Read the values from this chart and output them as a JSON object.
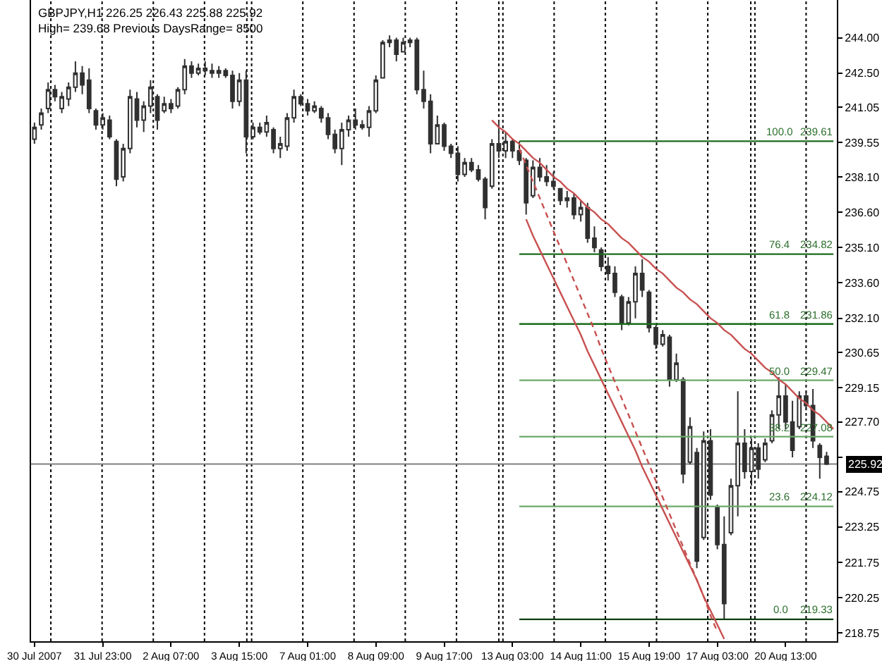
{
  "chart_data": {
    "type": "candlestick",
    "title": "GBPJPY,H1 226.25 226.43 225.88 225.92",
    "subtitle": "High= 239.68 Previous DaysRange= 8500",
    "color": "#303030",
    "categories": [
      "30 Jul 2007",
      null,
      null,
      null,
      null,
      null,
      null,
      null,
      null,
      null,
      "31 Jul 23:00",
      null,
      null,
      null,
      null,
      null,
      null,
      null,
      null,
      null,
      "2 Aug 07:00",
      null,
      null,
      null,
      null,
      null,
      null,
      null,
      null,
      null,
      "3 Aug 15:00",
      null,
      null,
      null,
      null,
      null,
      null,
      null,
      null,
      null,
      "7 Aug 01:00",
      null,
      null,
      null,
      null,
      null,
      null,
      null,
      null,
      null,
      "8 Aug 09:00",
      null,
      null,
      null,
      null,
      null,
      null,
      null,
      null,
      null,
      "9 Aug 17:00",
      null,
      null,
      null,
      null,
      null,
      null,
      null,
      null,
      null,
      "13 Aug 03:00",
      null,
      null,
      null,
      null,
      null,
      null,
      null,
      null,
      null,
      "14 Aug 11:00",
      null,
      null,
      null,
      null,
      null,
      null,
      null,
      null,
      null,
      "15 Aug 19:00",
      null,
      null,
      null,
      null,
      null,
      null,
      null,
      null,
      null,
      "17 Aug 03:00",
      null,
      null,
      null,
      null,
      null,
      null,
      null,
      null,
      null,
      "20 Aug 13:00",
      null,
      null,
      null,
      null,
      null,
      null,
      null
    ],
    "ohlc": [
      [
        239.7,
        240.4,
        239.5,
        240.2
      ],
      [
        240.3,
        241.0,
        240.1,
        240.8
      ],
      [
        241.0,
        242.1,
        240.8,
        241.8
      ],
      [
        241.8,
        242.0,
        241.3,
        241.5
      ],
      [
        241.0,
        241.7,
        240.8,
        241.5
      ],
      [
        241.4,
        242.1,
        241.1,
        241.9
      ],
      [
        241.9,
        243.0,
        241.7,
        242.5
      ],
      [
        242.5,
        242.8,
        241.6,
        242.0
      ],
      [
        242.2,
        242.7,
        240.8,
        241.0
      ],
      [
        240.9,
        241.0,
        240.1,
        240.3
      ],
      [
        240.3,
        240.8,
        240.1,
        240.6
      ],
      [
        240.5,
        240.7,
        239.7,
        239.8
      ],
      [
        239.6,
        239.7,
        237.7,
        238.0
      ],
      [
        238.1,
        239.5,
        237.9,
        239.3
      ],
      [
        239.3,
        241.8,
        239.1,
        241.5
      ],
      [
        241.4,
        241.7,
        240.2,
        240.5
      ],
      [
        240.5,
        241.3,
        240.0,
        241.1
      ],
      [
        241.1,
        242.2,
        240.8,
        241.9
      ],
      [
        241.5,
        241.6,
        240.1,
        240.5
      ],
      [
        240.9,
        241.5,
        240.8,
        241.2
      ],
      [
        241.2,
        241.4,
        240.8,
        241.0
      ],
      [
        241.1,
        241.9,
        241.0,
        241.8
      ],
      [
        241.8,
        243.1,
        241.6,
        242.8
      ],
      [
        242.8,
        243.0,
        242.3,
        242.5
      ],
      [
        242.5,
        242.9,
        242.4,
        242.7
      ],
      [
        242.7,
        243.0,
        242.4,
        242.6
      ],
      [
        242.6,
        242.9,
        242.3,
        242.5
      ],
      [
        242.5,
        242.8,
        242.3,
        242.6
      ],
      [
        242.6,
        242.7,
        242.3,
        242.4
      ],
      [
        242.4,
        242.6,
        241.0,
        241.3
      ],
      [
        241.3,
        242.5,
        241.1,
        242.2
      ],
      [
        242.2,
        242.6,
        239.1,
        239.8
      ],
      [
        239.8,
        240.4,
        239.7,
        240.2
      ],
      [
        240.2,
        240.4,
        239.9,
        240.0
      ],
      [
        240.0,
        240.7,
        239.8,
        240.4
      ],
      [
        240.1,
        240.2,
        239.1,
        239.3
      ],
      [
        239.3,
        239.8,
        238.9,
        239.5
      ],
      [
        239.4,
        240.8,
        239.2,
        240.6
      ],
      [
        240.6,
        241.8,
        240.4,
        241.5
      ],
      [
        241.5,
        241.6,
        241.1,
        241.2
      ],
      [
        241.2,
        241.4,
        240.7,
        240.9
      ],
      [
        240.9,
        241.3,
        240.8,
        241.1
      ],
      [
        241.0,
        241.1,
        240.4,
        240.6
      ],
      [
        240.6,
        240.8,
        239.7,
        239.9
      ],
      [
        239.9,
        240.1,
        239.1,
        239.3
      ],
      [
        239.3,
        240.4,
        238.6,
        240.1
      ],
      [
        240.1,
        240.7,
        239.8,
        240.5
      ],
      [
        240.5,
        241.0,
        240.1,
        240.3
      ],
      [
        240.3,
        240.5,
        240.1,
        240.2
      ],
      [
        240.2,
        241.1,
        239.8,
        240.9
      ],
      [
        240.9,
        242.4,
        240.8,
        242.2
      ],
      [
        242.3,
        243.9,
        242.3,
        243.8
      ],
      [
        243.8,
        244.1,
        243.6,
        243.9
      ],
      [
        243.9,
        244.0,
        243.0,
        243.3
      ],
      [
        243.4,
        244.0,
        243.4,
        243.8
      ],
      [
        243.8,
        244.0,
        243.6,
        243.9
      ],
      [
        243.9,
        244.0,
        241.6,
        241.8
      ],
      [
        241.8,
        242.6,
        241.0,
        241.3
      ],
      [
        241.3,
        241.6,
        239.1,
        239.5
      ],
      [
        239.5,
        240.7,
        239.5,
        240.3
      ],
      [
        240.3,
        240.4,
        239.2,
        239.4
      ],
      [
        239.4,
        239.5,
        238.9,
        239.1
      ],
      [
        239.1,
        239.4,
        237.9,
        238.2
      ],
      [
        238.2,
        238.9,
        238.1,
        238.7
      ],
      [
        238.7,
        238.9,
        238.3,
        238.4
      ],
      [
        238.4,
        238.6,
        237.9,
        238.0
      ],
      [
        238.0,
        238.1,
        236.3,
        236.8
      ],
      [
        237.7,
        239.7,
        237.6,
        239.5
      ],
      [
        239.5,
        240.5,
        238.9,
        239.2
      ],
      [
        239.2,
        240.0,
        238.9,
        239.6
      ],
      [
        239.6,
        239.7,
        238.9,
        239.2
      ],
      [
        239.2,
        239.6,
        238.6,
        238.8
      ],
      [
        238.8,
        238.9,
        236.5,
        237.0
      ],
      [
        237.3,
        238.8,
        237.2,
        238.5
      ],
      [
        238.5,
        238.9,
        237.9,
        238.1
      ],
      [
        238.1,
        238.6,
        237.7,
        237.9
      ],
      [
        237.9,
        238.3,
        237.6,
        237.7
      ],
      [
        237.6,
        237.6,
        236.9,
        237.1
      ],
      [
        237.1,
        237.5,
        236.8,
        237.2
      ],
      [
        237.2,
        237.4,
        236.3,
        236.5
      ],
      [
        236.5,
        237.1,
        236.2,
        236.8
      ],
      [
        236.8,
        237.0,
        235.3,
        235.5
      ],
      [
        235.5,
        236.0,
        234.9,
        235.1
      ],
      [
        235.0,
        235.1,
        234.1,
        234.3
      ],
      [
        234.3,
        234.7,
        233.7,
        234.0
      ],
      [
        234.0,
        234.3,
        233.0,
        233.2
      ],
      [
        233.0,
        233.1,
        231.6,
        231.9
      ],
      [
        231.9,
        233.0,
        231.8,
        232.8
      ],
      [
        232.8,
        234.3,
        232.1,
        234.0
      ],
      [
        234.0,
        234.6,
        233.0,
        233.3
      ],
      [
        233.2,
        233.3,
        231.5,
        231.7
      ],
      [
        231.7,
        231.8,
        230.8,
        231.0
      ],
      [
        231.0,
        231.6,
        230.9,
        231.4
      ],
      [
        231.3,
        231.4,
        229.2,
        229.5
      ],
      [
        229.5,
        230.6,
        229.4,
        230.2
      ],
      [
        229.5,
        229.6,
        225.1,
        225.5
      ],
      [
        226.0,
        227.9,
        225.9,
        227.5
      ],
      [
        226.4,
        226.6,
        221.5,
        221.8
      ],
      [
        222.8,
        227.3,
        222.7,
        226.9
      ],
      [
        226.9,
        227.4,
        224.4,
        224.6
      ],
      [
        224.1,
        224.2,
        222.3,
        222.5
      ],
      [
        222.5,
        223.7,
        219.3,
        220.0
      ],
      [
        223.0,
        225.3,
        222.9,
        225.0
      ],
      [
        225.0,
        229.0,
        223.7,
        226.8
      ],
      [
        226.8,
        227.4,
        225.3,
        225.6
      ],
      [
        225.6,
        227.0,
        225.0,
        226.6
      ],
      [
        226.6,
        226.8,
        225.3,
        225.7
      ],
      [
        226.1,
        227.0,
        226.0,
        226.8
      ],
      [
        226.9,
        228.2,
        226.8,
        228.0
      ],
      [
        228.0,
        229.6,
        227.4,
        228.8
      ],
      [
        228.8,
        229.3,
        227.4,
        227.7
      ],
      [
        227.7,
        228.6,
        226.2,
        226.5
      ],
      [
        227.5,
        229.0,
        227.4,
        228.8
      ],
      [
        228.8,
        229.0,
        228.2,
        228.4
      ],
      [
        228.4,
        229.1,
        226.6,
        226.9
      ],
      [
        226.7,
        226.8,
        225.3,
        226.2
      ],
      [
        226.25,
        226.43,
        225.88,
        225.92
      ],
      null
    ],
    "ylim": [
      218.4,
      245.6
    ],
    "yticks": [
      {
        "value": 244,
        "label": "244.00"
      },
      {
        "value": 242.5,
        "label": "242.50"
      },
      {
        "value": 241.05,
        "label": "241.05"
      },
      {
        "value": 239.55,
        "label": "239.55"
      },
      {
        "value": 238.1,
        "label": "238.10"
      },
      {
        "value": 236.6,
        "label": "236.60"
      },
      {
        "value": 235.1,
        "label": "235.10"
      },
      {
        "value": 233.6,
        "label": "233.60"
      },
      {
        "value": 232.1,
        "label": "232.10"
      },
      {
        "value": 230.65,
        "label": "230.65"
      },
      {
        "value": 229.15,
        "label": "229.15"
      },
      {
        "value": 227.7,
        "label": "227.70"
      },
      {
        "value": 226.2,
        "label": null
      },
      {
        "value": 224.75,
        "label": "224.75"
      },
      {
        "value": 223.25,
        "label": "223.25"
      },
      {
        "value": 221.75,
        "label": "221.75"
      },
      {
        "value": 220.25,
        "label": "220.25"
      },
      {
        "value": 218.75,
        "label": "218.75"
      }
    ],
    "series": [
      {
        "type": "line",
        "color": "#1a6b1a",
        "values": [
          null,
          null,
          null,
          null,
          null,
          null,
          null,
          null,
          null,
          null,
          null,
          null,
          null,
          null,
          null,
          null,
          null,
          null,
          null,
          null,
          null,
          null,
          null,
          null,
          null,
          null,
          null,
          null,
          null,
          null,
          null,
          null,
          null,
          null,
          null,
          null,
          null,
          null,
          null,
          null,
          null,
          null,
          null,
          null,
          null,
          null,
          null,
          null,
          null,
          null,
          null,
          null,
          null,
          null,
          null,
          null,
          null,
          null,
          null,
          null,
          null,
          null,
          null,
          null,
          null,
          null,
          null,
          null,
          null,
          null,
          null,
          239.61,
          239.61,
          239.61,
          239.61,
          239.61,
          239.61,
          239.61,
          239.61,
          239.61,
          239.61,
          239.61,
          239.61,
          239.61,
          239.61,
          239.61,
          239.61,
          239.61,
          239.61,
          239.61,
          239.61,
          239.61,
          239.61,
          239.61,
          239.61,
          239.61,
          239.61,
          239.61,
          239.61,
          239.61,
          239.61,
          239.61,
          239.61,
          239.61,
          239.61,
          239.61,
          239.61,
          239.61,
          239.61,
          239.61,
          239.61,
          239.61,
          239.61,
          239.61,
          239.61,
          239.61,
          239.61,
          239.61
        ]
      },
      {
        "type": "line",
        "color": "#1a6b1a",
        "values": [
          null,
          null,
          null,
          null,
          null,
          null,
          null,
          null,
          null,
          null,
          null,
          null,
          null,
          null,
          null,
          null,
          null,
          null,
          null,
          null,
          null,
          null,
          null,
          null,
          null,
          null,
          null,
          null,
          null,
          null,
          null,
          null,
          null,
          null,
          null,
          null,
          null,
          null,
          null,
          null,
          null,
          null,
          null,
          null,
          null,
          null,
          null,
          null,
          null,
          null,
          null,
          null,
          null,
          null,
          null,
          null,
          null,
          null,
          null,
          null,
          null,
          null,
          null,
          null,
          null,
          null,
          null,
          null,
          null,
          null,
          null,
          234.82,
          234.82,
          234.82,
          234.82,
          234.82,
          234.82,
          234.82,
          234.82,
          234.82,
          234.82,
          234.82,
          234.82,
          234.82,
          234.82,
          234.82,
          234.82,
          234.82,
          234.82,
          234.82,
          234.82,
          234.82,
          234.82,
          234.82,
          234.82,
          234.82,
          234.82,
          234.82,
          234.82,
          234.82,
          234.82,
          234.82,
          234.82,
          234.82,
          234.82,
          234.82,
          234.82,
          234.82,
          234.82,
          234.82,
          234.82,
          234.82,
          234.82,
          234.82,
          234.82,
          234.82,
          234.82,
          234.82
        ]
      },
      {
        "type": "line",
        "color": "#1a6b1a",
        "values": [
          null,
          null,
          null,
          null,
          null,
          null,
          null,
          null,
          null,
          null,
          null,
          null,
          null,
          null,
          null,
          null,
          null,
          null,
          null,
          null,
          null,
          null,
          null,
          null,
          null,
          null,
          null,
          null,
          null,
          null,
          null,
          null,
          null,
          null,
          null,
          null,
          null,
          null,
          null,
          null,
          null,
          null,
          null,
          null,
          null,
          null,
          null,
          null,
          null,
          null,
          null,
          null,
          null,
          null,
          null,
          null,
          null,
          null,
          null,
          null,
          null,
          null,
          null,
          null,
          null,
          null,
          null,
          null,
          null,
          null,
          null,
          231.86,
          231.86,
          231.86,
          231.86,
          231.86,
          231.86,
          231.86,
          231.86,
          231.86,
          231.86,
          231.86,
          231.86,
          231.86,
          231.86,
          231.86,
          231.86,
          231.86,
          231.86,
          231.86,
          231.86,
          231.86,
          231.86,
          231.86,
          231.86,
          231.86,
          231.86,
          231.86,
          231.86,
          231.86,
          231.86,
          231.86,
          231.86,
          231.86,
          231.86,
          231.86,
          231.86,
          231.86,
          231.86,
          231.86,
          231.86,
          231.86,
          231.86,
          231.86,
          231.86,
          231.86,
          231.86,
          231.86
        ]
      },
      {
        "type": "line",
        "color": "#6aaa6a",
        "values": [
          null,
          null,
          null,
          null,
          null,
          null,
          null,
          null,
          null,
          null,
          null,
          null,
          null,
          null,
          null,
          null,
          null,
          null,
          null,
          null,
          null,
          null,
          null,
          null,
          null,
          null,
          null,
          null,
          null,
          null,
          null,
          null,
          null,
          null,
          null,
          null,
          null,
          null,
          null,
          null,
          null,
          null,
          null,
          null,
          null,
          null,
          null,
          null,
          null,
          null,
          null,
          null,
          null,
          null,
          null,
          null,
          null,
          null,
          null,
          null,
          null,
          null,
          null,
          null,
          null,
          null,
          null,
          null,
          null,
          null,
          null,
          229.47,
          229.47,
          229.47,
          229.47,
          229.47,
          229.47,
          229.47,
          229.47,
          229.47,
          229.47,
          229.47,
          229.47,
          229.47,
          229.47,
          229.47,
          229.47,
          229.47,
          229.47,
          229.47,
          229.47,
          229.47,
          229.47,
          229.47,
          229.47,
          229.47,
          229.47,
          229.47,
          229.47,
          229.47,
          229.47,
          229.47,
          229.47,
          229.47,
          229.47,
          229.47,
          229.47,
          229.47,
          229.47,
          229.47,
          229.47,
          229.47,
          229.47,
          229.47,
          229.47,
          229.47,
          229.47,
          229.47
        ]
      },
      {
        "type": "line",
        "color": "#6aaa6a",
        "values": [
          null,
          null,
          null,
          null,
          null,
          null,
          null,
          null,
          null,
          null,
          null,
          null,
          null,
          null,
          null,
          null,
          null,
          null,
          null,
          null,
          null,
          null,
          null,
          null,
          null,
          null,
          null,
          null,
          null,
          null,
          null,
          null,
          null,
          null,
          null,
          null,
          null,
          null,
          null,
          null,
          null,
          null,
          null,
          null,
          null,
          null,
          null,
          null,
          null,
          null,
          null,
          null,
          null,
          null,
          null,
          null,
          null,
          null,
          null,
          null,
          null,
          null,
          null,
          null,
          null,
          null,
          null,
          null,
          null,
          null,
          null,
          227.08,
          227.08,
          227.08,
          227.08,
          227.08,
          227.08,
          227.08,
          227.08,
          227.08,
          227.08,
          227.08,
          227.08,
          227.08,
          227.08,
          227.08,
          227.08,
          227.08,
          227.08,
          227.08,
          227.08,
          227.08,
          227.08,
          227.08,
          227.08,
          227.08,
          227.08,
          227.08,
          227.08,
          227.08,
          227.08,
          227.08,
          227.08,
          227.08,
          227.08,
          227.08,
          227.08,
          227.08,
          227.08,
          227.08,
          227.08,
          227.08,
          227.08,
          227.08,
          227.08,
          227.08,
          227.08,
          227.08
        ]
      },
      {
        "type": "line",
        "color": "#6aaa6a",
        "values": [
          null,
          null,
          null,
          null,
          null,
          null,
          null,
          null,
          null,
          null,
          null,
          null,
          null,
          null,
          null,
          null,
          null,
          null,
          null,
          null,
          null,
          null,
          null,
          null,
          null,
          null,
          null,
          null,
          null,
          null,
          null,
          null,
          null,
          null,
          null,
          null,
          null,
          null,
          null,
          null,
          null,
          null,
          null,
          null,
          null,
          null,
          null,
          null,
          null,
          null,
          null,
          null,
          null,
          null,
          null,
          null,
          null,
          null,
          null,
          null,
          null,
          null,
          null,
          null,
          null,
          null,
          null,
          null,
          null,
          null,
          null,
          224.12,
          224.12,
          224.12,
          224.12,
          224.12,
          224.12,
          224.12,
          224.12,
          224.12,
          224.12,
          224.12,
          224.12,
          224.12,
          224.12,
          224.12,
          224.12,
          224.12,
          224.12,
          224.12,
          224.12,
          224.12,
          224.12,
          224.12,
          224.12,
          224.12,
          224.12,
          224.12,
          224.12,
          224.12,
          224.12,
          224.12,
          224.12,
          224.12,
          224.12,
          224.12,
          224.12,
          224.12,
          224.12,
          224.12,
          224.12,
          224.12,
          224.12,
          224.12,
          224.12,
          224.12,
          224.12,
          224.12
        ]
      },
      {
        "type": "line",
        "color": "#0f3f0f",
        "values": [
          null,
          null,
          null,
          null,
          null,
          null,
          null,
          null,
          null,
          null,
          null,
          null,
          null,
          null,
          null,
          null,
          null,
          null,
          null,
          null,
          null,
          null,
          null,
          null,
          null,
          null,
          null,
          null,
          null,
          null,
          null,
          null,
          null,
          null,
          null,
          null,
          null,
          null,
          null,
          null,
          null,
          null,
          null,
          null,
          null,
          null,
          null,
          null,
          null,
          null,
          null,
          null,
          null,
          null,
          null,
          null,
          null,
          null,
          null,
          null,
          null,
          null,
          null,
          null,
          null,
          null,
          null,
          null,
          null,
          null,
          null,
          219.33,
          219.33,
          219.33,
          219.33,
          219.33,
          219.33,
          219.33,
          219.33,
          219.33,
          219.33,
          219.33,
          219.33,
          219.33,
          219.33,
          219.33,
          219.33,
          219.33,
          219.33,
          219.33,
          219.33,
          219.33,
          219.33,
          219.33,
          219.33,
          219.33,
          219.33,
          219.33,
          219.33,
          219.33,
          219.33,
          219.33,
          219.33,
          219.33,
          219.33,
          219.33,
          219.33,
          219.33,
          219.33,
          219.33,
          219.33,
          219.33,
          219.33,
          219.33,
          219.33,
          219.33,
          219.33,
          219.33
        ]
      },
      {
        "type": "line",
        "color": "#c85050",
        "values": [
          null,
          null,
          null,
          null,
          null,
          null,
          null,
          null,
          null,
          null,
          null,
          null,
          null,
          null,
          null,
          null,
          null,
          null,
          null,
          null,
          null,
          null,
          null,
          null,
          null,
          null,
          null,
          null,
          null,
          null,
          null,
          null,
          null,
          null,
          null,
          null,
          null,
          null,
          null,
          null,
          null,
          null,
          null,
          null,
          null,
          null,
          null,
          null,
          null,
          null,
          null,
          null,
          null,
          null,
          null,
          null,
          null,
          null,
          null,
          null,
          null,
          null,
          null,
          null,
          null,
          null,
          null,
          240.5,
          240.2,
          240.0,
          239.7,
          239.5,
          239.2,
          238.9,
          238.7,
          238.4,
          238.1,
          237.9,
          237.6,
          237.4,
          237.1,
          236.8,
          236.6,
          236.3,
          236.1,
          235.8,
          235.5,
          235.3,
          235.0,
          234.7,
          234.5,
          234.2,
          234.0,
          233.7,
          233.4,
          233.2,
          232.9,
          232.7,
          232.4,
          232.1,
          231.9,
          231.6,
          231.4,
          231.1,
          230.8,
          230.6,
          230.3,
          230.0,
          229.8,
          229.5,
          229.3,
          229.0,
          228.7,
          228.5,
          228.2,
          228.0,
          227.7,
          227.4
        ]
      },
      {
        "type": "line",
        "color": "#c85050",
        "line_style": "dashed",
        "values": [
          null,
          null,
          null,
          null,
          null,
          null,
          null,
          null,
          null,
          null,
          null,
          null,
          null,
          null,
          null,
          null,
          null,
          null,
          null,
          null,
          null,
          null,
          null,
          null,
          null,
          null,
          null,
          null,
          null,
          null,
          null,
          null,
          null,
          null,
          null,
          null,
          null,
          null,
          null,
          null,
          null,
          null,
          null,
          null,
          null,
          null,
          null,
          null,
          null,
          null,
          null,
          null,
          null,
          null,
          null,
          null,
          null,
          null,
          null,
          null,
          null,
          null,
          null,
          null,
          null,
          null,
          null,
          null,
          null,
          null,
          null,
          239.3,
          238.6,
          237.9,
          237.2,
          236.5,
          235.8,
          235.1,
          234.4,
          233.7,
          233.0,
          232.3,
          231.6,
          230.8,
          230.1,
          229.4,
          228.7,
          228.0,
          227.3,
          226.6,
          225.9,
          225.2,
          224.5,
          223.8,
          223.1,
          222.4,
          221.7,
          221.0,
          220.3,
          219.5,
          218.8,
          null,
          null,
          null,
          null,
          null,
          null,
          null,
          null,
          null,
          null,
          null,
          null,
          null,
          null,
          null,
          null,
          null
        ]
      },
      {
        "type": "line",
        "color": "#c85050",
        "values": [
          null,
          null,
          null,
          null,
          null,
          null,
          null,
          null,
          null,
          null,
          null,
          null,
          null,
          null,
          null,
          null,
          null,
          null,
          null,
          null,
          null,
          null,
          null,
          null,
          null,
          null,
          null,
          null,
          null,
          null,
          null,
          null,
          null,
          null,
          null,
          null,
          null,
          null,
          null,
          null,
          null,
          null,
          null,
          null,
          null,
          null,
          null,
          null,
          null,
          null,
          null,
          null,
          null,
          null,
          null,
          null,
          null,
          null,
          null,
          null,
          null,
          null,
          null,
          null,
          null,
          null,
          null,
          null,
          null,
          null,
          null,
          null,
          236.3,
          235.6,
          235.0,
          234.4,
          233.8,
          233.2,
          232.6,
          232.0,
          231.4,
          230.7,
          230.1,
          229.5,
          228.9,
          228.3,
          227.7,
          227.1,
          226.5,
          225.8,
          225.2,
          224.6,
          224.0,
          223.4,
          222.8,
          222.2,
          221.6,
          221.0,
          220.3,
          219.7,
          219.1,
          218.5,
          null,
          null,
          null,
          null,
          null,
          null,
          null,
          null,
          null,
          null,
          null,
          null,
          null,
          null,
          null,
          null
        ]
      }
    ],
    "ref_lines": [
      {
        "axis": "y",
        "value": 225.92,
        "label": "225.92",
        "color": "#808080"
      }
    ],
    "annotations": [
      {
        "text": "100.0",
        "x": "20 Aug 13:00",
        "y": 239.61
      },
      {
        "text": "239.61",
        "x": "20 Aug 13:00",
        "y": 239.61
      },
      {
        "text": "76.4",
        "x": "20 Aug 13:00",
        "y": 234.82
      },
      {
        "text": "234.82",
        "x": "20 Aug 13:00",
        "y": 234.82
      },
      {
        "text": "61.8",
        "x": "20 Aug 13:00",
        "y": 231.86
      },
      {
        "text": "231.86",
        "x": "20 Aug 13:00",
        "y": 231.86
      },
      {
        "text": "50.0",
        "x": "20 Aug 13:00",
        "y": 229.47
      },
      {
        "text": "229.47",
        "x": "20 Aug 13:00",
        "y": 229.47
      },
      {
        "text": "38.2",
        "x": "20 Aug 13:00",
        "y": 227.08
      },
      {
        "text": "227.08",
        "x": "20 Aug 13:00",
        "y": 227.08
      },
      {
        "text": "23.6",
        "x": "20 Aug 13:00",
        "y": 224.12
      },
      {
        "text": "224.12",
        "x": "20 Aug 13:00",
        "y": 224.12
      },
      {
        "text": "0.0",
        "x": "20 Aug 13:00",
        "y": 219.33
      },
      {
        "text": "219.33",
        "x": "20 Aug 13:00",
        "y": 219.33
      }
    ]
  }
}
